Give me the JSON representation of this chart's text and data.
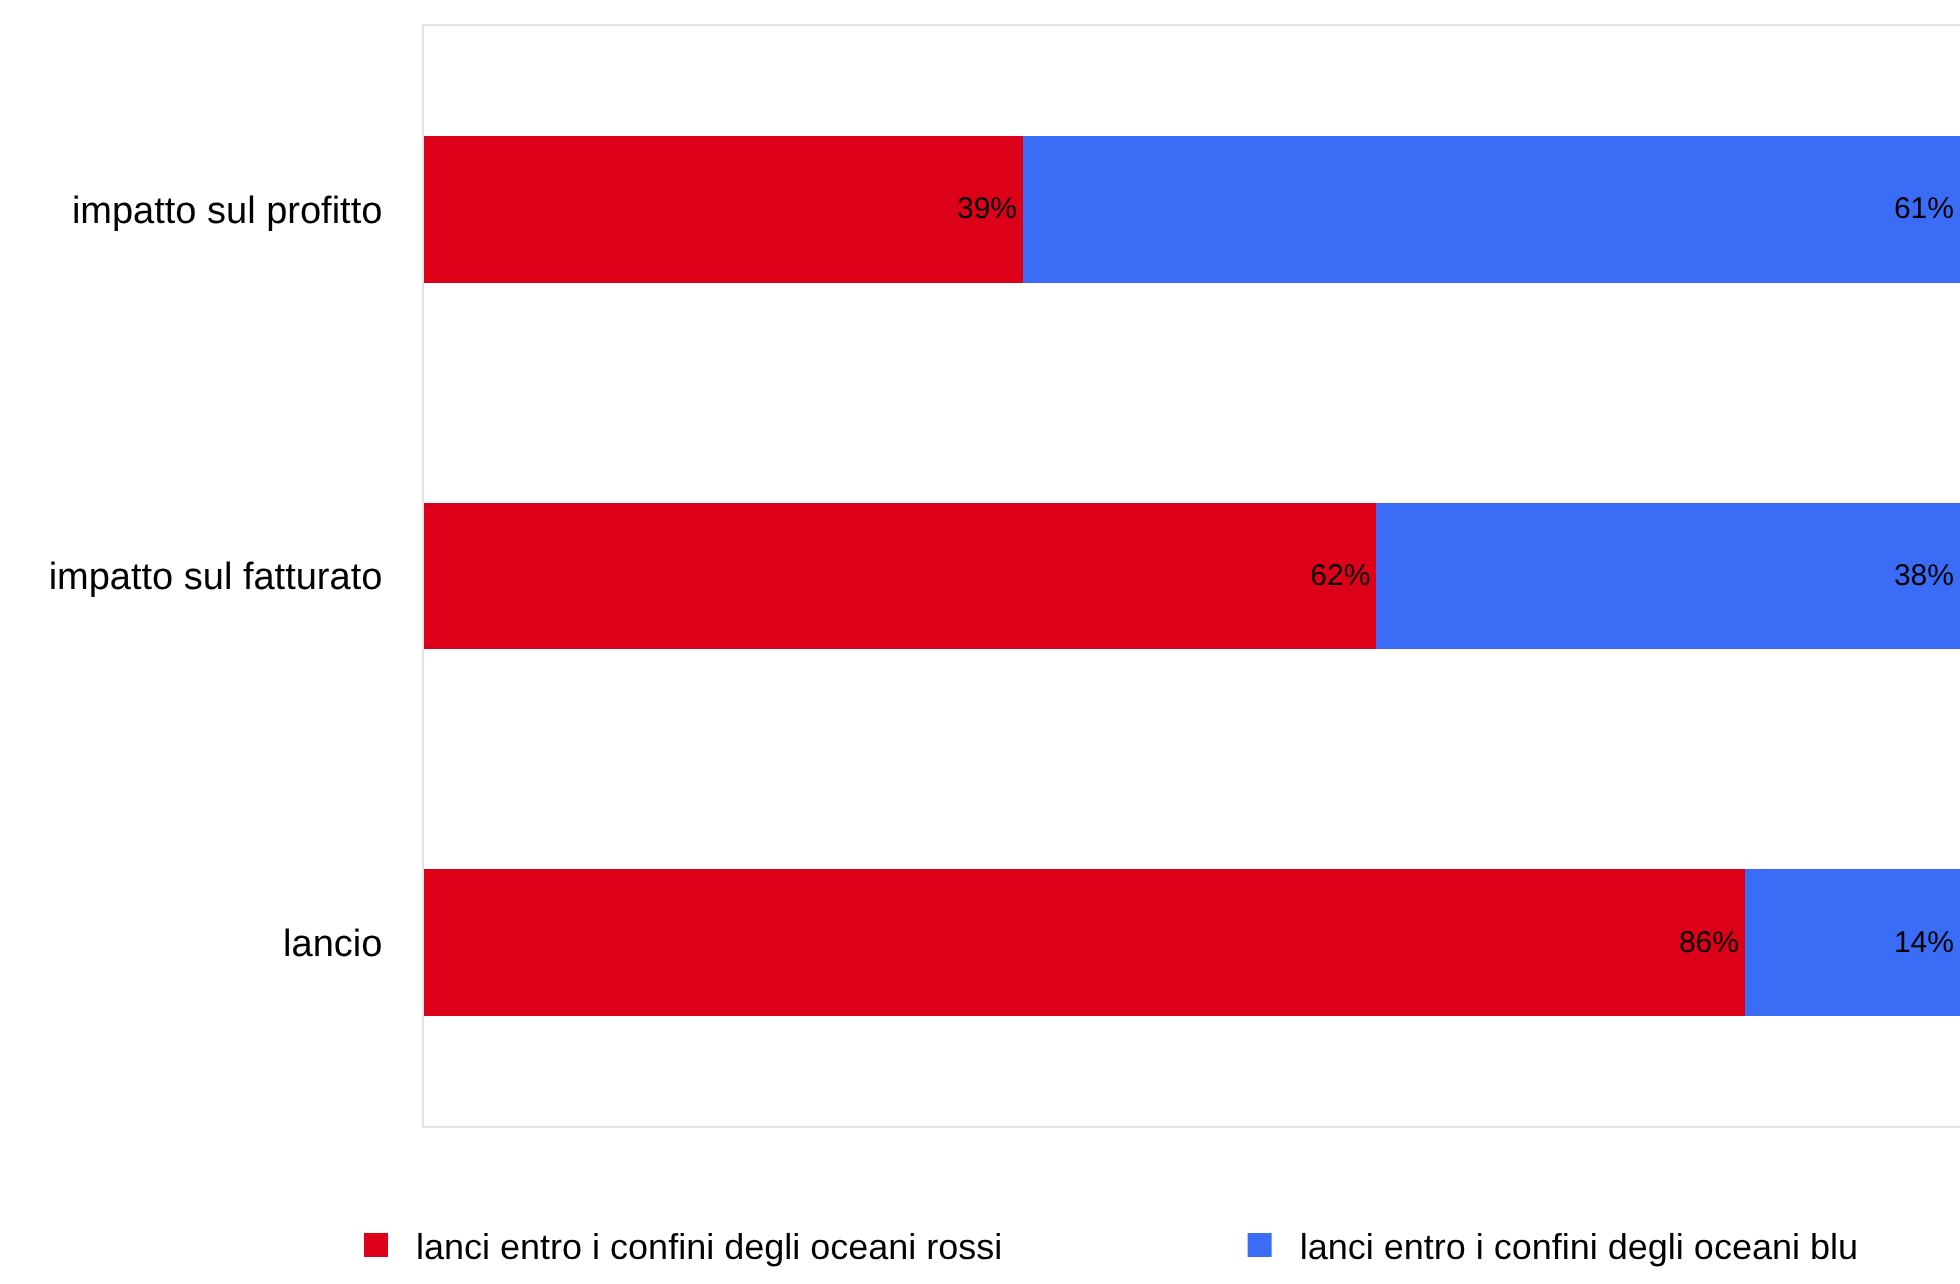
{
  "chart_data": {
    "type": "bar",
    "orientation": "horizontal",
    "stacked": true,
    "categories": [
      "impatto sul profitto",
      "impatto sul fatturato",
      "lancio"
    ],
    "series": [
      {
        "name": "lanci entro i confini degli oceani rossi",
        "color": "#dc0019",
        "values": [
          39,
          62,
          86
        ],
        "value_labels": [
          "39%",
          "62%",
          "86%"
        ]
      },
      {
        "name": "lanci entro i confini degli oceani blu",
        "color": "#3a6cf6",
        "values": [
          61,
          38,
          14
        ],
        "value_labels": [
          "61%",
          "38%",
          "14%"
        ]
      }
    ],
    "xlim": [
      0,
      100
    ],
    "tick_labels": "y",
    "legend": "bottom"
  }
}
